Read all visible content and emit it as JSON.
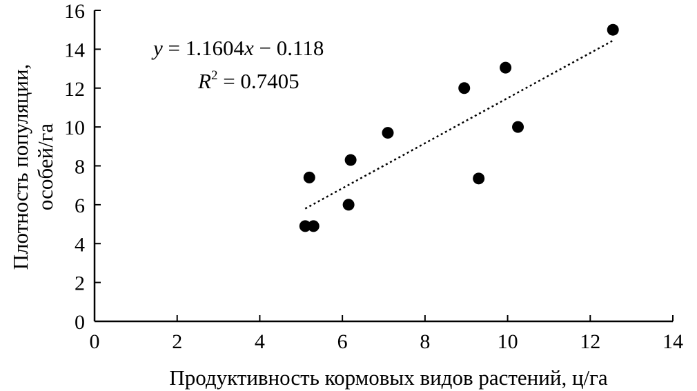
{
  "chart_data": {
    "type": "scatter",
    "xlabel": "Продуктивность кормовых видов растений, ц/га",
    "ylabel_line1": "Плотность популяции,",
    "ylabel_line2": "особей/га",
    "xlim": [
      0,
      14
    ],
    "ylim": [
      0,
      16
    ],
    "x_ticks": [
      0,
      2,
      4,
      6,
      8,
      10,
      12,
      14
    ],
    "y_ticks": [
      0,
      2,
      4,
      6,
      8,
      10,
      12,
      14,
      16
    ],
    "grid": false,
    "points": [
      {
        "x": 5.1,
        "y": 4.9
      },
      {
        "x": 5.3,
        "y": 4.9
      },
      {
        "x": 5.2,
        "y": 7.4
      },
      {
        "x": 6.15,
        "y": 6.0
      },
      {
        "x": 6.2,
        "y": 8.3
      },
      {
        "x": 7.1,
        "y": 9.7
      },
      {
        "x": 8.95,
        "y": 12.0
      },
      {
        "x": 9.3,
        "y": 7.35
      },
      {
        "x": 9.95,
        "y": 13.05
      },
      {
        "x": 10.25,
        "y": 10.0
      },
      {
        "x": 12.55,
        "y": 15.0
      }
    ],
    "trendline": {
      "slope": 1.1604,
      "intercept": -0.118,
      "x_range": [
        5.1,
        12.55
      ],
      "style": "dotted"
    },
    "equation": {
      "y_var": "y",
      "eq_rest": " = 1.1604",
      "x_var": "x",
      "eq_tail": " − 0.118",
      "r_var": "R",
      "r_sup": "2",
      "r_rest": " = 0.7405"
    },
    "marker_color": "#000000"
  }
}
